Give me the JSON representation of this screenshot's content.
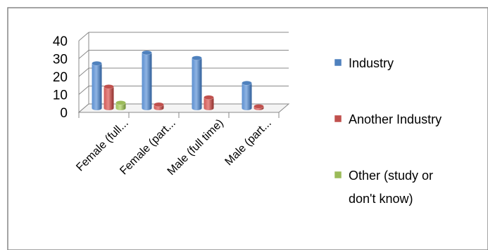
{
  "chart_data": {
    "type": "bar",
    "style": "3d-clustered-column",
    "categories": [
      "Female (full...",
      "Female (part...",
      "Male (full time)",
      "Male (part..."
    ],
    "series": [
      {
        "name": "Industry",
        "values": [
          25,
          31,
          28,
          14
        ],
        "color": "#4f81bd"
      },
      {
        "name": "Another Industry",
        "values": [
          12,
          2,
          6,
          1
        ],
        "color": "#c0504d"
      },
      {
        "name": "Other (study or don't know)",
        "values": [
          3,
          0,
          0,
          0
        ],
        "color": "#9bbb59"
      }
    ],
    "ylim": [
      0,
      40
    ],
    "yticks": [
      0,
      10,
      20,
      30,
      40
    ],
    "ytick_labels": [
      "0",
      "10",
      "20",
      "30",
      "40"
    ],
    "grid": true,
    "legend_position": "right",
    "legend_lines": [
      [
        "Industry"
      ],
      [
        "Another Industry"
      ],
      [
        "Other (study or",
        "don't know)"
      ]
    ],
    "frame_color": "#868686",
    "grid_color": "#888888"
  }
}
